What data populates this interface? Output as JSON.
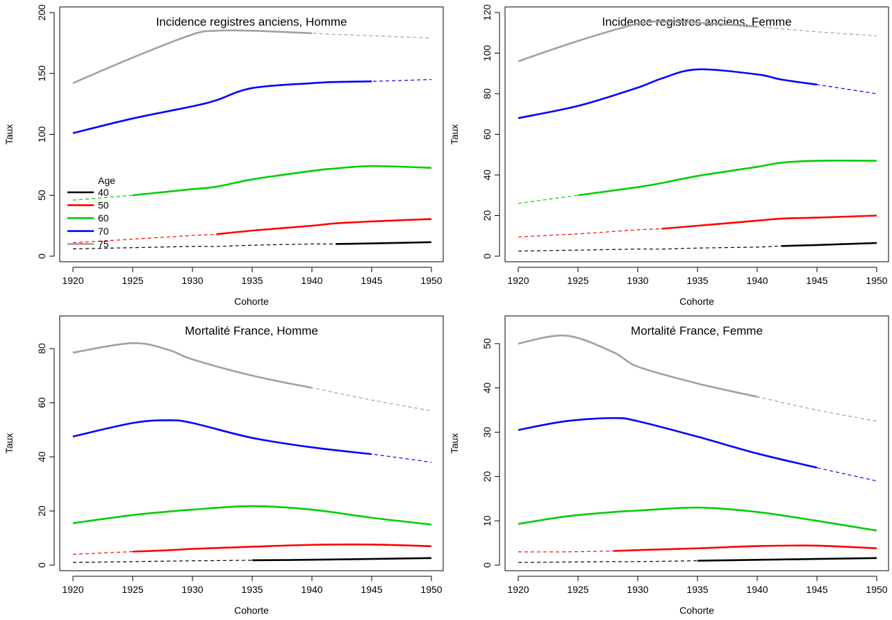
{
  "legend": {
    "title": "Age",
    "entries": [
      {
        "label": "40",
        "color": "#000000"
      },
      {
        "label": "50",
        "color": "#ff0000"
      },
      {
        "label": "60",
        "color": "#00cd00"
      },
      {
        "label": "70",
        "color": "#0000ff"
      },
      {
        "label": "75",
        "color": "#a0a0a0"
      }
    ]
  },
  "chart_data": [
    {
      "type": "line",
      "title": "Incidence registres anciens, Homme",
      "xlabel": "Cohorte",
      "ylabel": "Taux",
      "xlim": [
        1920,
        1950
      ],
      "ylim": [
        0,
        200
      ],
      "xticks": [
        1920,
        1925,
        1930,
        1935,
        1940,
        1945,
        1950
      ],
      "yticks": [
        0,
        50,
        100,
        150,
        200
      ],
      "legend_position": "left",
      "x": [
        1920,
        1925,
        1930,
        1932,
        1935,
        1940,
        1942,
        1945,
        1950
      ],
      "series": [
        {
          "name": "40",
          "color": "#000000",
          "observed_from": 1942,
          "observed_to": 1950,
          "values": [
            6,
            7,
            8,
            8,
            9,
            10,
            10,
            10.5,
            11.5
          ]
        },
        {
          "name": "50",
          "color": "#ff0000",
          "observed_from": 1932,
          "observed_to": 1950,
          "values": [
            11,
            14,
            17,
            18,
            21,
            25,
            27,
            28.5,
            30.5
          ]
        },
        {
          "name": "60",
          "color": "#00cd00",
          "observed_from": 1922,
          "observed_to": 1950,
          "values": [
            46,
            50,
            55,
            57,
            63,
            70,
            72,
            74,
            72.5
          ]
        },
        {
          "name": "70",
          "color": "#0000ff",
          "observed_from": 1920,
          "observed_to": 1945,
          "values": [
            101,
            113,
            123,
            128,
            138,
            142,
            143,
            143.5,
            145
          ]
        },
        {
          "name": "75",
          "color": "#a0a0a0",
          "observed_from": 1920,
          "observed_to": 1940,
          "values": [
            142,
            163,
            182,
            185,
            185,
            183,
            182,
            181,
            179
          ]
        }
      ]
    },
    {
      "type": "line",
      "title": "Incidence registres anciens, Femme",
      "xlabel": "Cohorte",
      "ylabel": "Taux",
      "xlim": [
        1920,
        1950
      ],
      "ylim": [
        0,
        120
      ],
      "xticks": [
        1920,
        1925,
        1930,
        1935,
        1940,
        1945,
        1950
      ],
      "yticks": [
        0,
        20,
        40,
        60,
        80,
        100,
        120
      ],
      "x": [
        1920,
        1925,
        1930,
        1932,
        1935,
        1940,
        1942,
        1945,
        1950
      ],
      "series": [
        {
          "name": "40",
          "color": "#000000",
          "observed_from": 1942,
          "observed_to": 1950,
          "values": [
            2.5,
            3,
            3.5,
            3.5,
            4,
            4.5,
            5,
            5.5,
            6.5
          ]
        },
        {
          "name": "50",
          "color": "#ff0000",
          "observed_from": 1932,
          "observed_to": 1950,
          "values": [
            9.5,
            11,
            13,
            13.5,
            15,
            17.5,
            18.5,
            19,
            20
          ]
        },
        {
          "name": "60",
          "color": "#00cd00",
          "observed_from": 1922,
          "observed_to": 1950,
          "values": [
            26,
            30,
            34,
            36,
            39.5,
            44,
            46,
            47,
            47
          ]
        },
        {
          "name": "70",
          "color": "#0000ff",
          "observed_from": 1920,
          "observed_to": 1945,
          "values": [
            68,
            74,
            83,
            87.5,
            92,
            89.5,
            87,
            84.5,
            80
          ]
        },
        {
          "name": "75",
          "color": "#a0a0a0",
          "observed_from": 1920,
          "observed_to": 1940,
          "values": [
            96,
            106,
            114.5,
            115.5,
            115,
            113,
            112,
            110.5,
            108.5
          ]
        }
      ]
    },
    {
      "type": "line",
      "title": "Mortalité France, Homme",
      "xlabel": "Cohorte",
      "ylabel": "Taux",
      "xlim": [
        1920,
        1950
      ],
      "ylim": [
        0,
        90
      ],
      "xticks": [
        1920,
        1925,
        1930,
        1935,
        1940,
        1945,
        1950
      ],
      "yticks": [
        0,
        20,
        40,
        60,
        80
      ],
      "x": [
        1920,
        1925,
        1928,
        1930,
        1935,
        1940,
        1945,
        1950
      ],
      "series": [
        {
          "name": "40",
          "color": "#000000",
          "observed_from": 1935,
          "observed_to": 1950,
          "values": [
            1,
            1.3,
            1.5,
            1.6,
            1.8,
            2,
            2.3,
            2.6
          ]
        },
        {
          "name": "50",
          "color": "#ff0000",
          "observed_from": 1925,
          "observed_to": 1950,
          "values": [
            4,
            5,
            5.5,
            6,
            6.8,
            7.5,
            7.6,
            7
          ]
        },
        {
          "name": "60",
          "color": "#00cd00",
          "observed_from": 1920,
          "observed_to": 1950,
          "values": [
            15.5,
            18.5,
            19.8,
            20.5,
            21.8,
            20.5,
            17.5,
            15
          ]
        },
        {
          "name": "70",
          "color": "#0000ff",
          "observed_from": 1920,
          "observed_to": 1945,
          "values": [
            47.5,
            52.5,
            53.5,
            52.5,
            47,
            43.5,
            41,
            38
          ]
        },
        {
          "name": "75",
          "color": "#a0a0a0",
          "observed_from": 1920,
          "observed_to": 1940,
          "values": [
            78.5,
            82,
            79.5,
            76,
            70,
            65.5,
            61,
            57
          ]
        }
      ]
    },
    {
      "type": "line",
      "title": "Mortalité France, Femme",
      "xlabel": "Cohorte",
      "ylabel": "Taux",
      "xlim": [
        1920,
        1950
      ],
      "ylim": [
        0,
        55
      ],
      "xticks": [
        1920,
        1925,
        1930,
        1935,
        1940,
        1945,
        1950
      ],
      "yticks": [
        0,
        10,
        20,
        30,
        40,
        50
      ],
      "x": [
        1920,
        1924,
        1928,
        1930,
        1935,
        1940,
        1945,
        1950
      ],
      "series": [
        {
          "name": "40",
          "color": "#000000",
          "observed_from": 1935,
          "observed_to": 1950,
          "values": [
            0.6,
            0.7,
            0.8,
            0.8,
            1,
            1.2,
            1.4,
            1.6
          ]
        },
        {
          "name": "50",
          "color": "#ff0000",
          "observed_from": 1925,
          "observed_to": 1950,
          "values": [
            3,
            3,
            3.2,
            3.4,
            3.8,
            4.3,
            4.4,
            3.8
          ]
        },
        {
          "name": "60",
          "color": "#00cd00",
          "observed_from": 1920,
          "observed_to": 1950,
          "values": [
            9.3,
            11,
            12,
            12.3,
            13,
            12,
            10,
            7.8
          ]
        },
        {
          "name": "70",
          "color": "#0000ff",
          "observed_from": 1920,
          "observed_to": 1945,
          "values": [
            30.5,
            32.5,
            33.2,
            32.5,
            29,
            25.2,
            22,
            19
          ]
        },
        {
          "name": "75",
          "color": "#a0a0a0",
          "observed_from": 1920,
          "observed_to": 1940,
          "values": [
            50,
            51.8,
            48,
            44.8,
            41,
            38,
            35,
            32.5
          ]
        }
      ]
    }
  ]
}
